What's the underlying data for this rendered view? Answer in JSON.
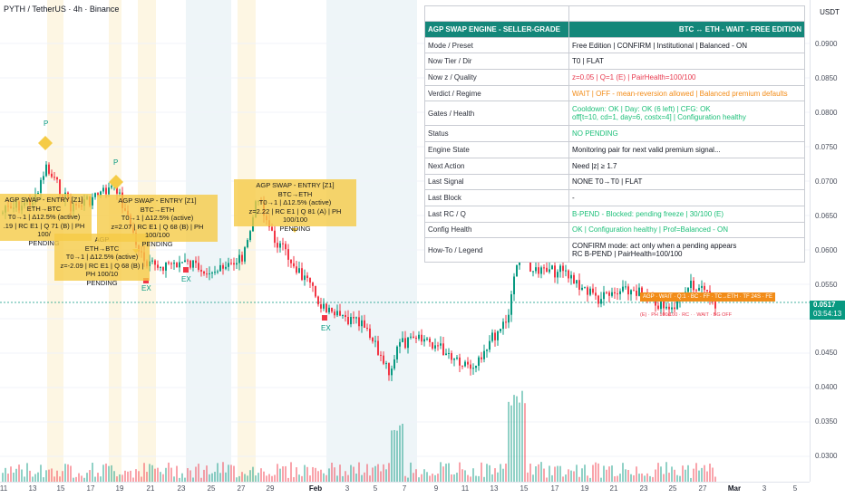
{
  "chart": {
    "title": "PYTH / TetherUS · 4h · Binance",
    "currency_button": "USDT",
    "current_price": "0.0517",
    "countdown": "03:54:13",
    "price_axis_labels": [
      "0.0900",
      "0.0850",
      "0.0800",
      "0.0750",
      "0.0700",
      "0.0650",
      "0.0600",
      "0.0550",
      "0.0450",
      "0.0400",
      "0.0350",
      "0.0300"
    ],
    "time_axis_labels": [
      "11",
      "13",
      "15",
      "17",
      "19",
      "21",
      "23",
      "25",
      "27",
      "29",
      "Feb",
      "3",
      "5",
      "7",
      "9",
      "11",
      "13",
      "15",
      "17",
      "19",
      "21",
      "23",
      "25",
      "27",
      "Mar",
      "3",
      "5"
    ],
    "colors": {
      "up": "#089981",
      "down": "#f23645",
      "annotation": "#f5cb46",
      "accent": "#14877a"
    }
  },
  "annotations": [
    {
      "text": "AGP SWAP - ENTRY [Z1]\nETH→BTC\nT0→1 | Δ12.5% (active)\n.19 | RC E1 | Q 71 (B) | PH 100/\nPENDING"
    },
    {
      "text": "AGP SWAP - ENTRY [Z1]\nBTC→ETH\nT0→1 | Δ12.5% (active)\nz=2.07 | RC E1 | Q 68 (B) | PH 100/100\nPENDING"
    },
    {
      "text": "AGP\nETH→BTC\nT0→1 | Δ12.5% (active)\nz=-2.09 | RC E1 | Q 68 (B) | PH 100/10\nPENDING"
    },
    {
      "text": "AGP SWAP - ENTRY [Z1]\nBTC→ETH\nT0→1 | Δ12.5% (active)\nz=2.22 | RC E1 | Q 81 (A) | PH 100/100\nPENDING"
    }
  ],
  "markers": {
    "p_label": "P",
    "ex_label": "EX"
  },
  "signal_label": "AGP · WAIT · Q:1 · BC · FF · TC→ETH · TF 24S · FE",
  "signal_sub": "(E) · PH 100/100 · RC · · WAIT · BG OFF",
  "table": {
    "header_left": "AGP SWAP ENGINE - SELLER-GRADE",
    "header_right": "BTC ↔ ETH - WAIT - FREE EDITION",
    "rows": [
      {
        "label": "Mode / Preset",
        "value": "Free Edition | CONFIRM | Institutional | Balanced - ON",
        "color": "dark"
      },
      {
        "label": "Now Tier / Dir",
        "value": "T0 | FLAT",
        "color": "dark"
      },
      {
        "label": "Now z / Quality",
        "value": "z=0.05 | Q=1 (E) | PairHealth=100/100",
        "color": "red"
      },
      {
        "label": "Verdict / Regime",
        "value": "WAIT | OFF - mean-reversion allowed | Balanced premium defaults",
        "color": "orange"
      },
      {
        "label": "Gates / Health",
        "value": "Cooldown: OK | Day: OK (6 left) | CFG: OK\noff[t=10, cd=1, day=6, costx=4] | Configuration healthy",
        "color": "green"
      },
      {
        "label": "Status",
        "value": "NO PENDING",
        "color": "green"
      },
      {
        "label": "Engine State",
        "value": "Monitoring pair for next valid premium signal...",
        "color": "dark"
      },
      {
        "label": "Next Action",
        "value": "Need |z| ≥ 1.7",
        "color": "dark"
      },
      {
        "label": "Last Signal",
        "value": "NONE T0→T0 | FLAT",
        "color": "dark"
      },
      {
        "label": "Last Block",
        "value": "-",
        "color": "dark"
      },
      {
        "label": "Last RC / Q",
        "value": "B-PEND - Blocked: pending freeze | 30/100 (E)",
        "color": "green"
      },
      {
        "label": "Config Health",
        "value": "OK | Configuration healthy | Prof=Balanced - ON",
        "color": "green"
      },
      {
        "label": "How-To / Legend",
        "value": "CONFIRM mode: act only when a pending appears\nRC B-PEND | PairHealth=100/100",
        "color": "dark"
      }
    ]
  }
}
